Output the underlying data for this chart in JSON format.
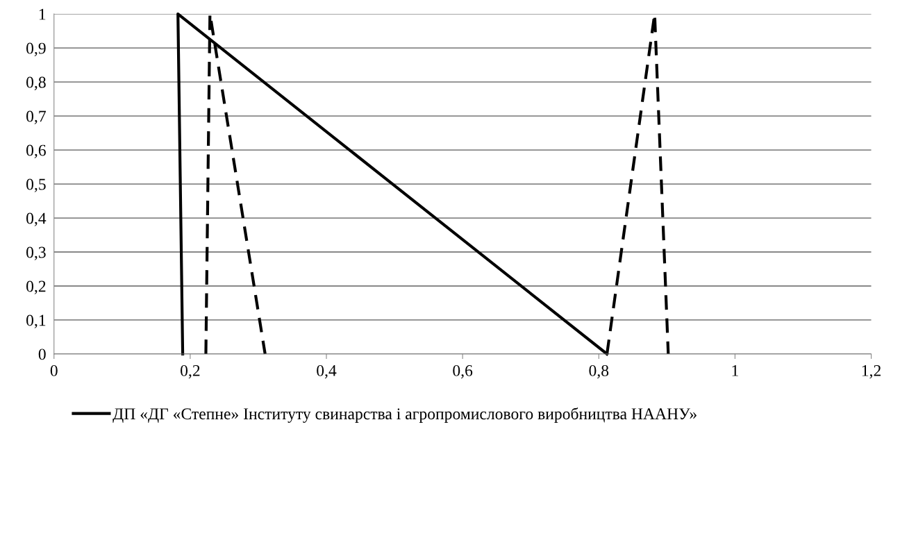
{
  "chart_data": {
    "type": "line",
    "series": [
      {
        "color": "#000000",
        "line_style": "dashed",
        "x": [
          0.812,
          0.882,
          0.902
        ],
        "values": [
          0,
          1,
          0
        ]
      },
      {
        "name": "ДП «ДГ «Степне» Інституту свинарства і агропромислового виробництва НААНУ»",
        "color": "#000000",
        "line_style": "solid",
        "x": [
          0.189,
          0.182,
          0.812
        ],
        "values": [
          0,
          1,
          0
        ]
      },
      {
        "color": "#000000",
        "line_style": "dashed",
        "x": [
          0.223,
          0.229,
          0.31
        ],
        "values": [
          0,
          1,
          0
        ]
      }
    ],
    "xlim": [
      0,
      1.2
    ],
    "xticks": [
      0,
      {
        "value": 0.2,
        "label": "0,2"
      },
      {
        "value": 0.4,
        "label": "0,4"
      },
      {
        "value": 0.6,
        "label": "0,6"
      },
      {
        "value": 0.8,
        "label": "0,8"
      },
      1,
      {
        "value": 1.2,
        "label": "1,2"
      }
    ],
    "ylim": [
      0,
      1
    ],
    "yticks": [
      0,
      {
        "value": 0.1,
        "label": "0,1"
      },
      {
        "value": 0.2,
        "label": "0,2"
      },
      {
        "value": 0.3,
        "label": "0,3"
      },
      {
        "value": 0.4,
        "label": "0,4"
      },
      {
        "value": 0.5,
        "label": "0,5"
      },
      {
        "value": 0.6,
        "label": "0,6"
      },
      {
        "value": 0.7,
        "label": "0,7"
      },
      {
        "value": 0.8,
        "label": "0,8"
      },
      {
        "value": 0.9,
        "label": "0,9"
      },
      1
    ],
    "grid": "y",
    "legend": "bottom"
  }
}
